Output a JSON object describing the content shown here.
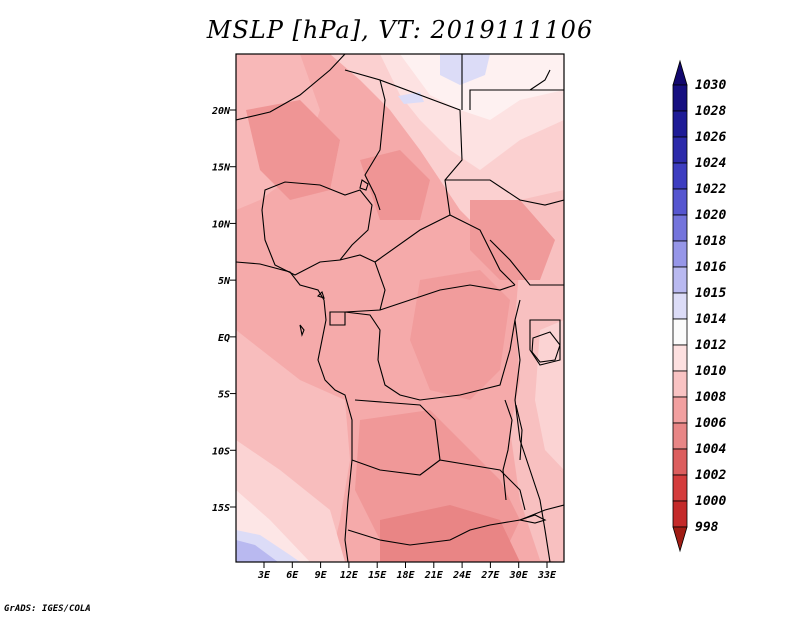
{
  "title": "MSLP [hPa], VT: 2019111106",
  "credit": "GrADS: IGES/COLA",
  "lat_ticks": [
    {
      "label": "20N",
      "lat": 20
    },
    {
      "label": "15N",
      "lat": 15
    },
    {
      "label": "10N",
      "lat": 10
    },
    {
      "label": "5N",
      "lat": 5
    },
    {
      "label": "EQ",
      "lat": 0
    },
    {
      "label": "5S",
      "lat": -5
    },
    {
      "label": "10S",
      "lat": -10
    },
    {
      "label": "15S",
      "lat": -15
    }
  ],
  "lon_ticks": [
    {
      "label": "3E",
      "lon": 3
    },
    {
      "label": "6E",
      "lon": 6
    },
    {
      "label": "9E",
      "lon": 9
    },
    {
      "label": "12E",
      "lon": 12
    },
    {
      "label": "15E",
      "lon": 15
    },
    {
      "label": "18E",
      "lon": 18
    },
    {
      "label": "21E",
      "lon": 21
    },
    {
      "label": "24E",
      "lon": 24
    },
    {
      "label": "27E",
      "lon": 27
    },
    {
      "label": "30E",
      "lon": 30
    },
    {
      "label": "33E",
      "lon": 33
    }
  ],
  "colorbar": {
    "levels": [
      {
        "label": "1030",
        "color": "#160f80"
      },
      {
        "label": "1028",
        "color": "#1e1b96"
      },
      {
        "label": "1026",
        "color": "#2c2aaa"
      },
      {
        "label": "1024",
        "color": "#3d3dc0"
      },
      {
        "label": "1022",
        "color": "#5656d0"
      },
      {
        "label": "1020",
        "color": "#7474dc"
      },
      {
        "label": "1018",
        "color": "#9696e8"
      },
      {
        "label": "1016",
        "color": "#b9b9f0"
      },
      {
        "label": "1015",
        "color": "#dcdcf7"
      },
      {
        "label": "1014",
        "color": "#fbfbfb"
      },
      {
        "label": "1012",
        "color": "#fde0e0"
      },
      {
        "label": "1010",
        "color": "#f9c3c3"
      },
      {
        "label": "1008",
        "color": "#f2a0a0"
      },
      {
        "label": "1006",
        "color": "#e88686"
      },
      {
        "label": "1004",
        "color": "#dc5e5e"
      },
      {
        "label": "1002",
        "color": "#d43c3c"
      },
      {
        "label": "1000",
        "color": "#c42a2a"
      },
      {
        "label": "998",
        "color": "#a8201c"
      }
    ],
    "top_color": "#12086e",
    "bottom_color": "#a01c14"
  }
}
